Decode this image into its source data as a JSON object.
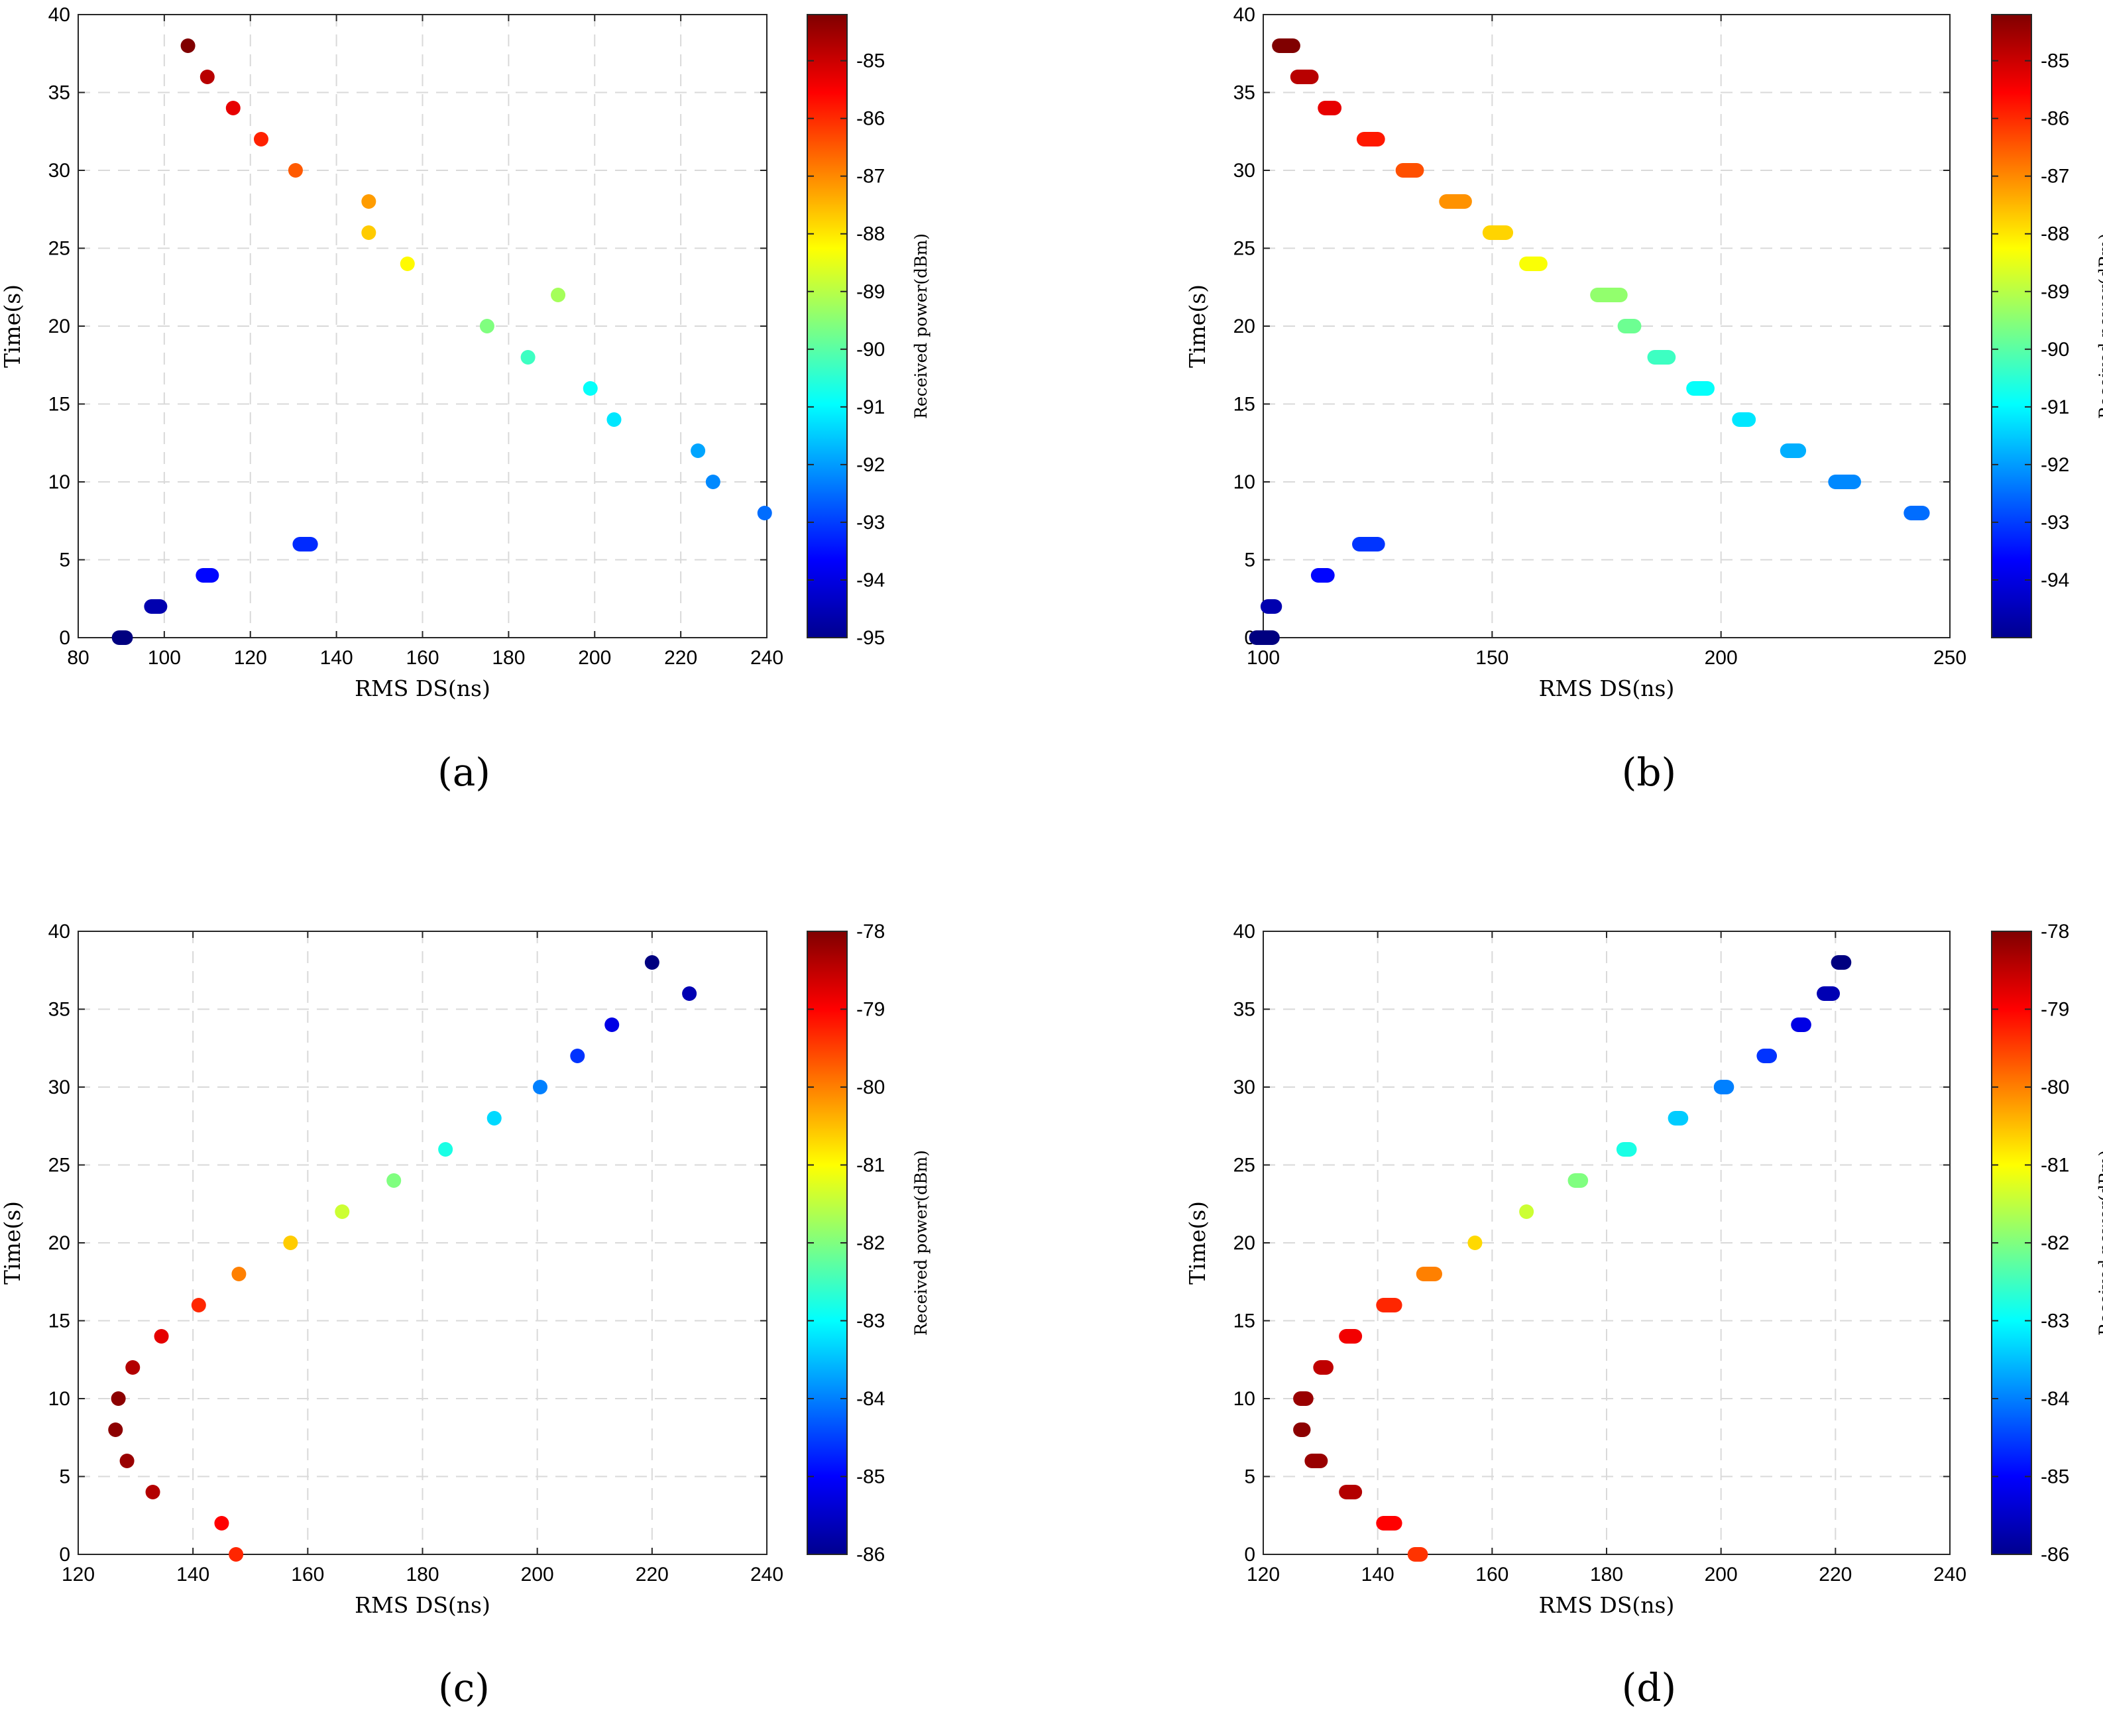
{
  "chart_data": [
    {
      "type": "scatter",
      "panel_label": "(a)",
      "xlabel": "RMS DS(ns)",
      "ylabel": "Time(s)",
      "xlim": [
        80,
        240
      ],
      "ylim": [
        0,
        40
      ],
      "xticks": [
        80,
        100,
        120,
        140,
        160,
        180,
        200,
        220,
        240
      ],
      "yticks": [
        0,
        5,
        10,
        15,
        20,
        25,
        30,
        35,
        40
      ],
      "grid": true,
      "colorbar": {
        "label": "Received power(dBm)",
        "range": [
          -95,
          -84.2
        ],
        "ticks": [
          -95,
          -94,
          -93,
          -92,
          -91,
          -90,
          -89,
          -88,
          -87,
          -86,
          -85
        ]
      },
      "points": [
        {
          "x": [
            89.5,
            91
          ],
          "y": 0,
          "power": -95
        },
        {
          "x": [
            97,
            99
          ],
          "y": 2,
          "power": -94.5
        },
        {
          "x": [
            109,
            111
          ],
          "y": 4,
          "power": -93.6
        },
        {
          "x": [
            131.5,
            134
          ],
          "y": 6,
          "power": -93.2
        },
        {
          "x": [
            239.5
          ],
          "y": 8,
          "power": -92.5
        },
        {
          "x": [
            227.5
          ],
          "y": 10,
          "power": -92.2
        },
        {
          "x": [
            224
          ],
          "y": 12,
          "power": -91.9
        },
        {
          "x": [
            204.5
          ],
          "y": 14,
          "power": -91.2
        },
        {
          "x": [
            199
          ],
          "y": 16,
          "power": -90.9
        },
        {
          "x": [
            184.5
          ],
          "y": 18,
          "power": -90.3
        },
        {
          "x": [
            175
          ],
          "y": 20,
          "power": -89.6
        },
        {
          "x": [
            191.5
          ],
          "y": 22,
          "power": -89.2
        },
        {
          "x": [
            156.5
          ],
          "y": 24,
          "power": -88.2
        },
        {
          "x": [
            147.5
          ],
          "y": 26,
          "power": -87.7
        },
        {
          "x": [
            147.5
          ],
          "y": 28,
          "power": -87.2
        },
        {
          "x": [
            130.5
          ],
          "y": 30,
          "power": -86.5
        },
        {
          "x": [
            122.5
          ],
          "y": 32,
          "power": -85.9
        },
        {
          "x": [
            116
          ],
          "y": 34,
          "power": -85.3
        },
        {
          "x": [
            110
          ],
          "y": 36,
          "power": -84.8
        },
        {
          "x": [
            105.5
          ],
          "y": 38,
          "power": -84.2
        }
      ]
    },
    {
      "type": "scatter",
      "panel_label": "(b)",
      "xlabel": "RMS DS(ns)",
      "ylabel": "Time(s)",
      "xlim": [
        100,
        250
      ],
      "ylim": [
        0,
        40
      ],
      "xticks": [
        100,
        150,
        200,
        250
      ],
      "yticks": [
        0,
        5,
        10,
        15,
        20,
        25,
        30,
        35,
        40
      ],
      "grid": true,
      "colorbar": {
        "label": "Received power(dBm)",
        "range": [
          -95,
          -84.2
        ],
        "ticks": [
          -94,
          -93,
          -92,
          -91,
          -90,
          -89,
          -88,
          -87,
          -86,
          -85
        ]
      },
      "points": [
        {
          "x": [
            98.5,
            102
          ],
          "y": 0,
          "power": -95
        },
        {
          "x": [
            101,
            102.5
          ],
          "y": 2,
          "power": -94.5
        },
        {
          "x": [
            112,
            114
          ],
          "y": 4,
          "power": -93.6
        },
        {
          "x": [
            121,
            125
          ],
          "y": 6,
          "power": -93.1
        },
        {
          "x": [
            241.5,
            244
          ],
          "y": 8,
          "power": -92.5
        },
        {
          "x": [
            225,
            229
          ],
          "y": 10,
          "power": -92.2
        },
        {
          "x": [
            214.5,
            217
          ],
          "y": 12,
          "power": -91.8
        },
        {
          "x": [
            204,
            206
          ],
          "y": 14,
          "power": -91.2
        },
        {
          "x": [
            194,
            197
          ],
          "y": 16,
          "power": -90.9
        },
        {
          "x": [
            185.5,
            188.5
          ],
          "y": 18,
          "power": -90.3
        },
        {
          "x": [
            179,
            181
          ],
          "y": 20,
          "power": -89.8
        },
        {
          "x": [
            173,
            178
          ],
          "y": 22,
          "power": -89.4
        },
        {
          "x": [
            157.5,
            160.5
          ],
          "y": 24,
          "power": -88.3
        },
        {
          "x": [
            149.5,
            153
          ],
          "y": 26,
          "power": -87.8
        },
        {
          "x": [
            140,
            144
          ],
          "y": 28,
          "power": -87.1
        },
        {
          "x": [
            130.5,
            133.5
          ],
          "y": 30,
          "power": -86.4
        },
        {
          "x": [
            122,
            125
          ],
          "y": 32,
          "power": -85.8
        },
        {
          "x": [
            113.5,
            115.5
          ],
          "y": 34,
          "power": -85.3
        },
        {
          "x": [
            107.5,
            110.5
          ],
          "y": 36,
          "power": -84.8
        },
        {
          "x": [
            103.5,
            106.5
          ],
          "y": 38,
          "power": -84.2
        }
      ]
    },
    {
      "type": "scatter",
      "panel_label": "(c)",
      "xlabel": "RMS DS(ns)",
      "ylabel": "Time(s)",
      "xlim": [
        120,
        240
      ],
      "ylim": [
        0,
        40
      ],
      "xticks": [
        120,
        140,
        160,
        180,
        200,
        220,
        240
      ],
      "yticks": [
        0,
        5,
        10,
        15,
        20,
        25,
        30,
        35,
        40
      ],
      "grid": true,
      "colorbar": {
        "label": "Received power(dBm)",
        "range": [
          -86,
          -78
        ],
        "ticks": [
          -86,
          -85,
          -84,
          -83,
          -82,
          -81,
          -80,
          -79,
          -78
        ]
      },
      "points": [
        {
          "x": [
            147.5
          ],
          "y": 0,
          "power": -79.3
        },
        {
          "x": [
            145
          ],
          "y": 2,
          "power": -79
        },
        {
          "x": [
            133
          ],
          "y": 4,
          "power": -78.4
        },
        {
          "x": [
            128.5
          ],
          "y": 6,
          "power": -78.2
        },
        {
          "x": [
            126.5
          ],
          "y": 8,
          "power": -78.1
        },
        {
          "x": [
            127
          ],
          "y": 10,
          "power": -78.1
        },
        {
          "x": [
            129.5
          ],
          "y": 12,
          "power": -78.4
        },
        {
          "x": [
            134.5
          ],
          "y": 14,
          "power": -78.8
        },
        {
          "x": [
            141
          ],
          "y": 16,
          "power": -79.3
        },
        {
          "x": [
            148
          ],
          "y": 18,
          "power": -80
        },
        {
          "x": [
            157
          ],
          "y": 20,
          "power": -80.6
        },
        {
          "x": [
            166
          ],
          "y": 22,
          "power": -81.4
        },
        {
          "x": [
            175
          ],
          "y": 24,
          "power": -82
        },
        {
          "x": [
            184
          ],
          "y": 26,
          "power": -82.8
        },
        {
          "x": [
            192.5
          ],
          "y": 28,
          "power": -83.3
        },
        {
          "x": [
            200.5
          ],
          "y": 30,
          "power": -84
        },
        {
          "x": [
            207
          ],
          "y": 32,
          "power": -84.6
        },
        {
          "x": [
            213
          ],
          "y": 34,
          "power": -85.2
        },
        {
          "x": [
            226.5
          ],
          "y": 36,
          "power": -85.6
        },
        {
          "x": [
            220
          ],
          "y": 38,
          "power": -86
        }
      ]
    },
    {
      "type": "scatter",
      "panel_label": "(d)",
      "xlabel": "RMS DS(ns)",
      "ylabel": "Time(s)",
      "xlim": [
        120,
        240
      ],
      "ylim": [
        0,
        40
      ],
      "xticks": [
        120,
        140,
        160,
        180,
        200,
        220,
        240
      ],
      "yticks": [
        0,
        5,
        10,
        15,
        20,
        25,
        30,
        35,
        40
      ],
      "grid": true,
      "colorbar": {
        "label": "Received power(dBm)",
        "range": [
          -86,
          -78
        ],
        "ticks": [
          -86,
          -85,
          -84,
          -83,
          -82,
          -81,
          -80,
          -79,
          -78
        ]
      },
      "points": [
        {
          "x": [
            146.5,
            147.5
          ],
          "y": 0,
          "power": -79.4
        },
        {
          "x": [
            141,
            143
          ],
          "y": 2,
          "power": -79
        },
        {
          "x": [
            134.5,
            136
          ],
          "y": 4,
          "power": -78.4
        },
        {
          "x": [
            128.5,
            130
          ],
          "y": 6,
          "power": -78.2
        },
        {
          "x": [
            126.5,
            127
          ],
          "y": 8,
          "power": -78.1
        },
        {
          "x": [
            126.5,
            127.5
          ],
          "y": 10,
          "power": -78.2
        },
        {
          "x": [
            130,
            131
          ],
          "y": 12,
          "power": -78.5
        },
        {
          "x": [
            134.5,
            136
          ],
          "y": 14,
          "power": -78.9
        },
        {
          "x": [
            141,
            143
          ],
          "y": 16,
          "power": -79.3
        },
        {
          "x": [
            148,
            150
          ],
          "y": 18,
          "power": -80
        },
        {
          "x": [
            157
          ],
          "y": 20,
          "power": -80.7
        },
        {
          "x": [
            166
          ],
          "y": 22,
          "power": -81.4
        },
        {
          "x": [
            174.5,
            175.5
          ],
          "y": 24,
          "power": -82
        },
        {
          "x": [
            183,
            184
          ],
          "y": 26,
          "power": -82.8
        },
        {
          "x": [
            192,
            193
          ],
          "y": 28,
          "power": -83.4
        },
        {
          "x": [
            200,
            201
          ],
          "y": 30,
          "power": -84
        },
        {
          "x": [
            207.5,
            208.5
          ],
          "y": 32,
          "power": -84.6
        },
        {
          "x": [
            213.5,
            214.5
          ],
          "y": 34,
          "power": -85.2
        },
        {
          "x": [
            218,
            219.5
          ],
          "y": 36,
          "power": -85.6
        },
        {
          "x": [
            220.5,
            221.5
          ],
          "y": 38,
          "power": -86
        }
      ]
    }
  ]
}
